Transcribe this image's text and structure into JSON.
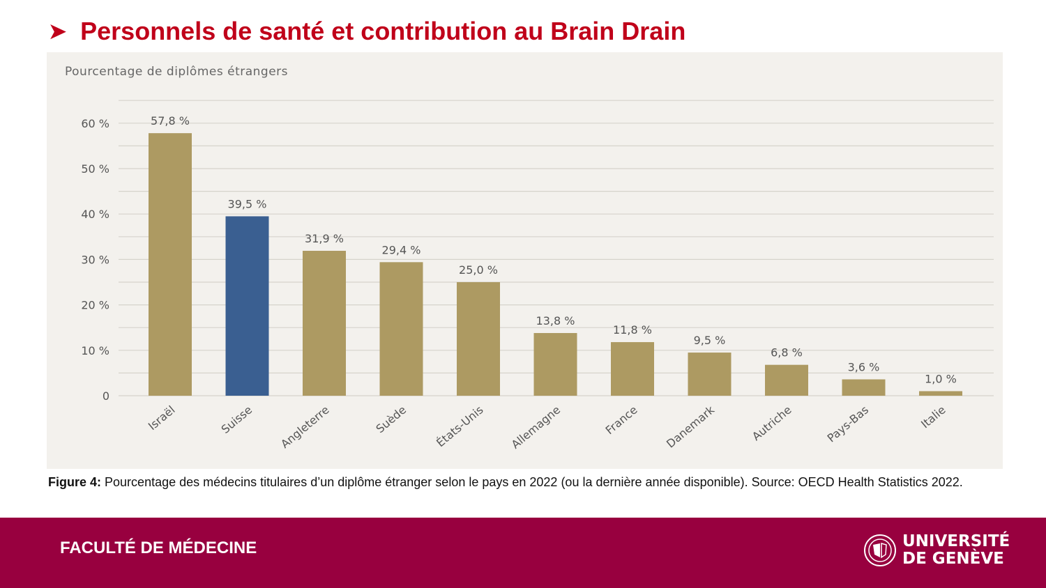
{
  "slide": {
    "title": "Personnels de santé et contribution au Brain Drain",
    "bullet_icon": "arrowhead-bullet-icon"
  },
  "chart_data": {
    "type": "bar",
    "subtitle": "Pourcentage de diplômes étrangers",
    "categories": [
      "Israël",
      "Suisse",
      "Angleterre",
      "Suède",
      "États-Unis",
      "Allemagne",
      "France",
      "Danemark",
      "Autriche",
      "Pays-Bas",
      "Italie"
    ],
    "values": [
      57.8,
      39.5,
      31.9,
      29.4,
      25.0,
      13.8,
      11.8,
      9.5,
      6.8,
      3.6,
      1.0
    ],
    "data_labels": [
      "57,8 %",
      "39,5 %",
      "31,9 %",
      "29,4 %",
      "25,0 %",
      "13,8 %",
      "11,8 %",
      "9,5 %",
      "6,8 %",
      "3,6 %",
      "1,0 %"
    ],
    "ylim": [
      0,
      65
    ],
    "yticks": [
      0,
      10,
      20,
      30,
      40,
      50,
      60
    ],
    "ytick_labels": [
      "0",
      "10 %",
      "20 %",
      "30 %",
      "40 %",
      "50 %",
      "60 %"
    ],
    "grid": true,
    "colors": {
      "default": "#ad9a62",
      "highlight": "#3a5f91"
    },
    "highlight_category": "Suisse"
  },
  "caption": {
    "label": "Figure 4:",
    "text": "Pourcentage des médecins titulaires d’un diplôme étranger selon le pays en 2022 (ou la dernière année disponible). Source: OECD Health Statistics 2022."
  },
  "footer": {
    "faculty": "FACULTÉ DE MÉDECINE",
    "university_line1": "UNIVERSITÉ",
    "university_line2": "DE GENÈVE"
  }
}
